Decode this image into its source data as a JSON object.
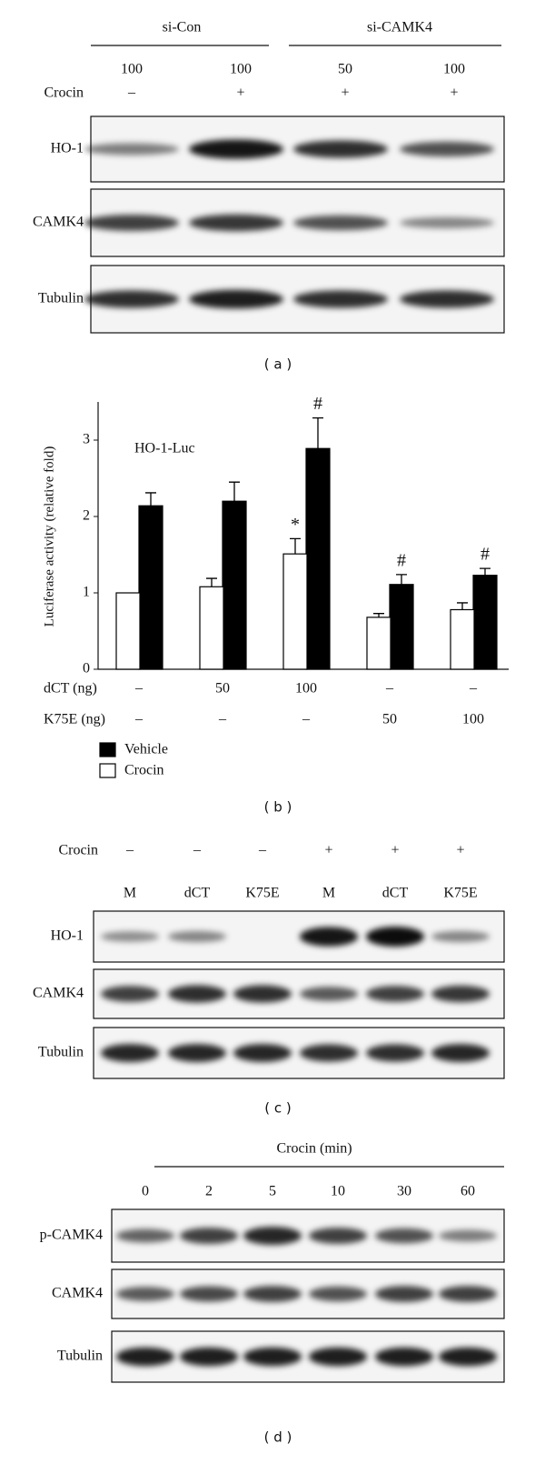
{
  "panel_a": {
    "groups": [
      "si-Con",
      "si-CAMK4"
    ],
    "doses": [
      "100",
      "100",
      "50",
      "100"
    ],
    "crocin_label": "Crocin",
    "crocin": [
      "–",
      "+",
      "+",
      "+"
    ],
    "blots": [
      "HO-1",
      "CAMK4",
      "Tubulin"
    ],
    "caption": "( a )"
  },
  "chart_data": {
    "type": "bar",
    "title": "HO-1-Luc",
    "y_label": "Luciferase activity (relative fold)",
    "categories": [
      null,
      null,
      null,
      null,
      null
    ],
    "rows": [
      {
        "label": "dCT (ng)",
        "values": [
          "–",
          "50",
          "100",
          "–",
          "–"
        ]
      },
      {
        "label": "K75E (ng)",
        "values": [
          "–",
          "–",
          "–",
          "50",
          "100"
        ]
      }
    ],
    "series": [
      {
        "name": "Vehicle",
        "color": "#000000",
        "values": [
          2.14,
          2.2,
          2.89,
          1.11,
          1.23
        ],
        "errors": [
          0.17,
          0.25,
          0.4,
          0.13,
          0.09
        ],
        "significance": [
          null,
          null,
          "#",
          "#",
          "#"
        ]
      },
      {
        "name": "Crocin",
        "color": "#ffffff",
        "values": [
          1.0,
          1.08,
          1.51,
          0.68,
          0.78
        ],
        "errors": [
          null,
          0.11,
          0.2,
          0.05,
          0.09
        ],
        "significance": [
          null,
          null,
          "*",
          null,
          null
        ]
      }
    ],
    "ylim": [
      0,
      3.5
    ],
    "yticks": [
      0,
      1,
      2,
      3
    ],
    "caption": "( b )"
  },
  "panel_c": {
    "crocin_label": "Crocin",
    "crocin": [
      "–",
      "–",
      "–",
      "+",
      "+",
      "+"
    ],
    "lanes": [
      "M",
      "dCT",
      "K75E",
      "M",
      "dCT",
      "K75E"
    ],
    "blots": [
      "HO-1",
      "CAMK4",
      "Tubulin"
    ],
    "caption": "( c )"
  },
  "panel_d": {
    "header": "Crocin (min)",
    "times": [
      "0",
      "2",
      "5",
      "10",
      "30",
      "60"
    ],
    "blots": [
      "p-CAMK4",
      "CAMK4",
      "Tubulin"
    ],
    "caption": "( d )"
  }
}
